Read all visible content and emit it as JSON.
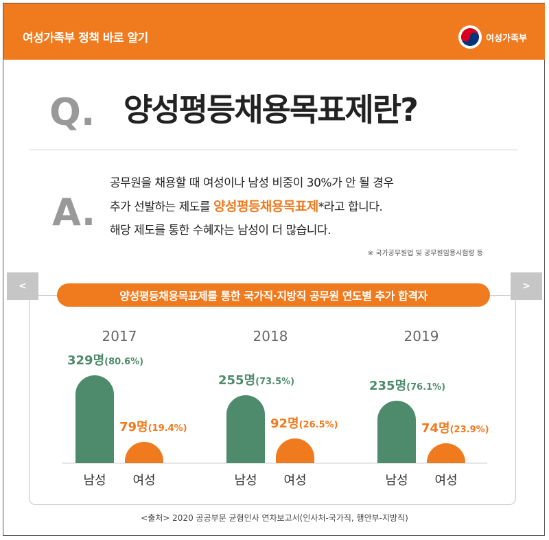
{
  "header": {
    "title": "여성가족부 정책 바로 알기",
    "logo_text": "여성가족부"
  },
  "qa": {
    "q_letter": "Q.",
    "question": "양성평등채용목표제란?",
    "a_letter": "A.",
    "answer_line1": "공무원을 채용할 때 여성이나 남성 비중이 30%가 안 될 경우",
    "answer_line2_pre": "추가 선발하는 제도를 ",
    "answer_highlight": "양성평등채용목표제",
    "answer_line2_post": "*라고 합니다.",
    "answer_line3": "해당 제도를 통한 수혜자는 남성이 더 많습니다.",
    "note": "※ 국가공무원법 및 공무원임용시험령 등"
  },
  "nav": {
    "prev": "<",
    "next": ">"
  },
  "colors": {
    "male": "#4e8a6c",
    "female": "#f07a1e",
    "year": "#666666"
  },
  "chart_data": {
    "type": "bar",
    "title": "양성평등채용목표제를 통한 국가직·지방직 공무원 연도별 추가 합격자",
    "categories": [
      "2017",
      "2018",
      "2019"
    ],
    "series": [
      {
        "name": "남성",
        "values": [
          329,
          255,
          235
        ],
        "labels": [
          "329명(80.6%)",
          "255명(73.5%)",
          "235명(76.1%)"
        ]
      },
      {
        "name": "여성",
        "values": [
          79,
          92,
          74
        ],
        "labels": [
          "79명(19.4%)",
          "92명(26.5%)",
          "74명(23.9%)"
        ]
      }
    ],
    "ylim": [
      0,
      329
    ]
  },
  "source": "<출처> 2020 공공부문 균형인사 연차보고서(인사처-국가직, 행안부-지방직)"
}
